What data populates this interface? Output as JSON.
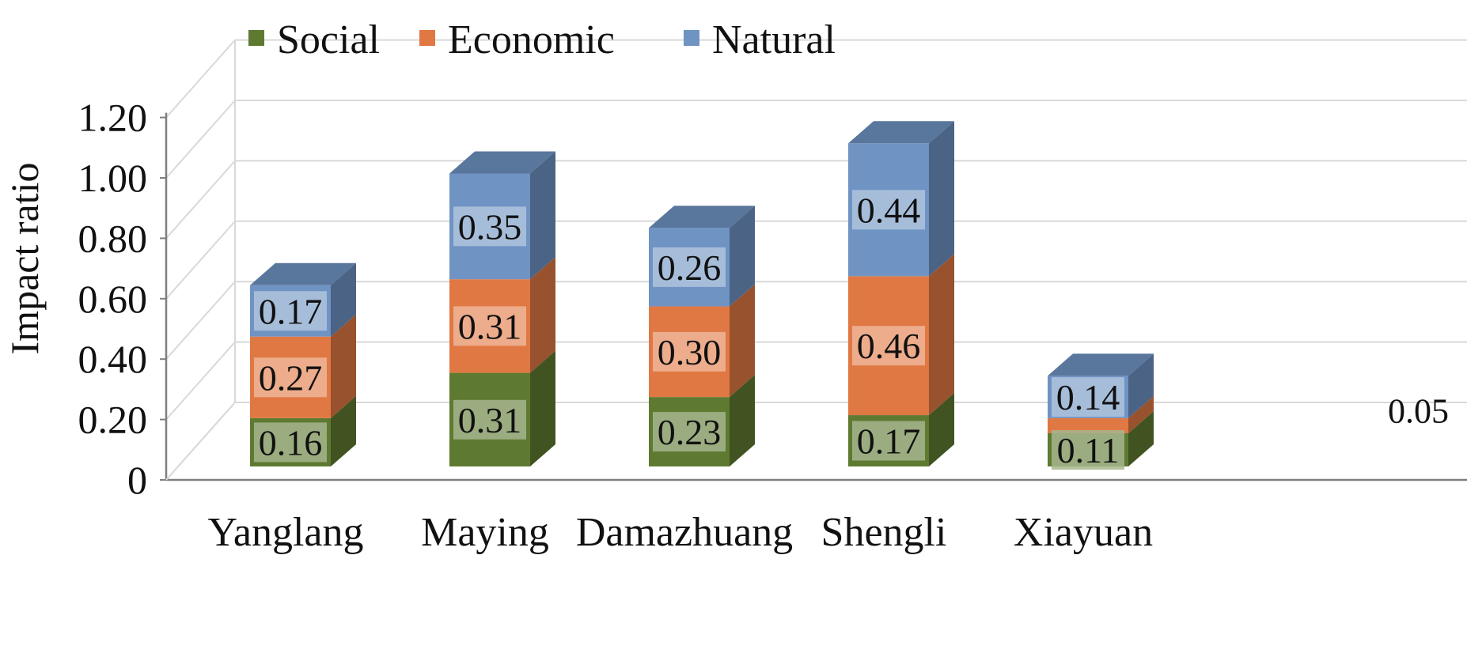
{
  "chart_data": {
    "type": "bar",
    "stacked": true,
    "three_d": true,
    "categories": [
      "Yanglang",
      "Maying",
      "Damazhuang",
      "Shengli",
      "Xiayuan"
    ],
    "series": [
      {
        "name": "Social",
        "color": "#5E7A31",
        "values": [
          0.16,
          0.31,
          0.23,
          0.17,
          0.11
        ]
      },
      {
        "name": "Economic",
        "color": "#E07844",
        "values": [
          0.27,
          0.31,
          0.3,
          0.46,
          0.05
        ]
      },
      {
        "name": "Natural",
        "color": "#6F93C3",
        "values": [
          0.17,
          0.35,
          0.26,
          0.44,
          0.14
        ]
      }
    ],
    "data_labels": [
      [
        "0.16",
        "0.27",
        "0.17"
      ],
      [
        "0.31",
        "0.31",
        "0.35"
      ],
      [
        "0.23",
        "0.30",
        "0.26"
      ],
      [
        "0.17",
        "0.46",
        "0.44"
      ],
      [
        "0.11",
        "0.05",
        "0.14"
      ]
    ],
    "ylabel": "Impact ratio",
    "xlabel": "",
    "ylim": [
      0,
      1.2
    ],
    "yticks": [
      0,
      0.2,
      0.4,
      0.6,
      0.8,
      1.0,
      1.2
    ],
    "ytick_labels": [
      "0",
      "0.20",
      "0.40",
      "0.60",
      "0.80",
      "1.00",
      "1.20"
    ],
    "grid": true,
    "legend_position": "top"
  }
}
